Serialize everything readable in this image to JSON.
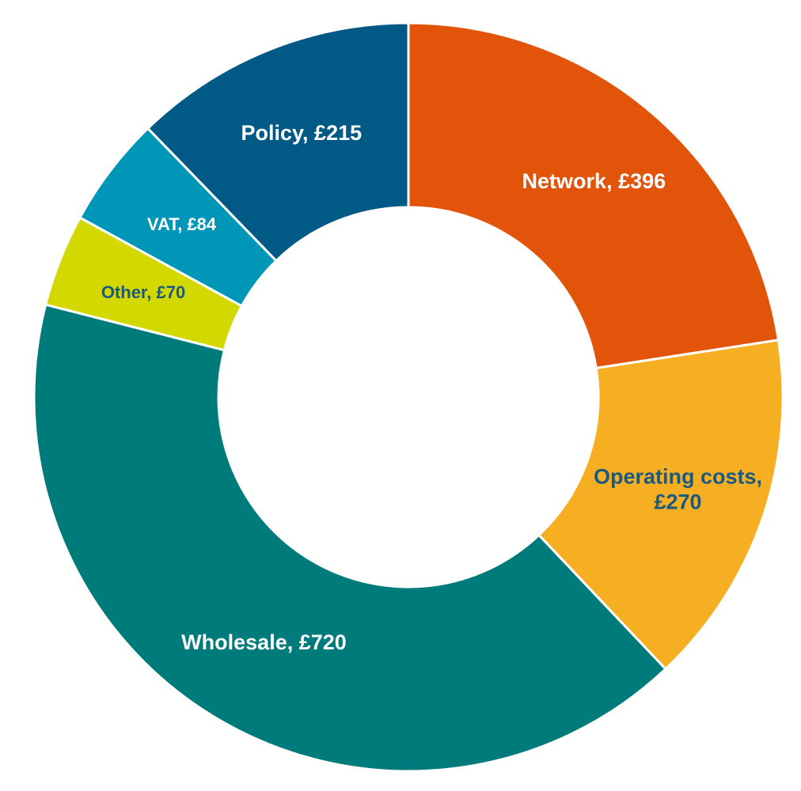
{
  "chart_data": {
    "type": "donut",
    "values": [
      396,
      270,
      720,
      70,
      84,
      215
    ],
    "value_labels": [
      "Network, £396",
      "Operating costs, £270",
      "Wholesale, £720",
      "Other, £70",
      "VAT, £84",
      "Policy, £215"
    ],
    "colors": [
      "#e1540a",
      "#f6ae22",
      "#007b7b",
      "#d3d800",
      "#0096b7",
      "#005a85"
    ],
    "label_colors": [
      "#ffffff",
      "#1b5a80",
      "#ffffff",
      "#1b5a80",
      "#ffffff",
      "#ffffff"
    ]
  }
}
